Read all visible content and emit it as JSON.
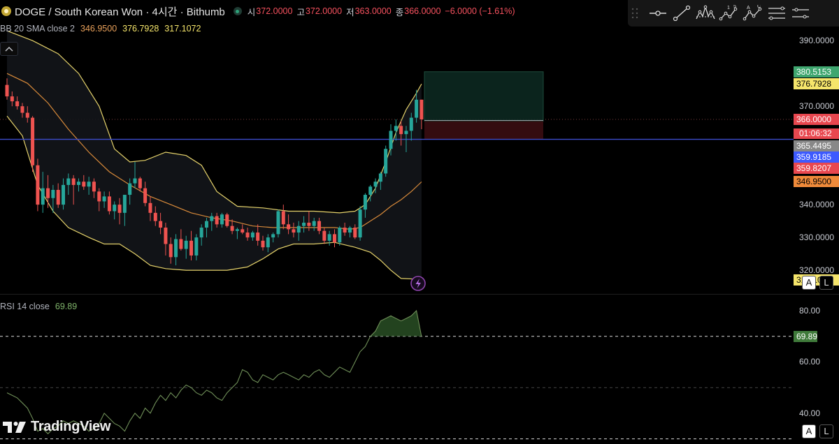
{
  "header": {
    "symbol_title": "DOGE / South Korean Won · 4시간 · Bithumb",
    "open_label": "시",
    "open_value": "372.0000",
    "high_label": "고",
    "high_value": "372.0000",
    "low_label": "저",
    "low_value": "363.0000",
    "close_label": "종",
    "close_value": "366.0000",
    "change": "−6.0000 (−1.61%)"
  },
  "indicators": {
    "bb_title": "BB 20 SMA close 2",
    "bb_basis": "346.9500",
    "bb_upper": "376.7928",
    "bb_lower": "317.1072",
    "rsi_title": "RSI 14 close",
    "rsi_value": "69.89"
  },
  "price_axis": {
    "ticks": [
      {
        "value": 390,
        "label": "390.0000"
      },
      {
        "value": 370,
        "label": "370.0000"
      },
      {
        "value": 340,
        "label": "340.0000"
      },
      {
        "value": 330,
        "label": "330.0000"
      },
      {
        "value": 320,
        "label": "320.0000"
      }
    ],
    "labels": [
      {
        "value": 380.5153,
        "text": "380.5153",
        "bg": "#3fa66f",
        "fg": "#ffffff"
      },
      {
        "value": 376.7928,
        "text": "376.7928",
        "bg": "#f5e56b",
        "fg": "#000000"
      },
      {
        "value": 366.0,
        "text": "366.0000",
        "bg": "#e8474f",
        "fg": "#ffffff"
      },
      {
        "value": 365.4495,
        "text": "365.4495",
        "bg": "#888888",
        "fg": "#ffffff"
      },
      {
        "value": 359.9185,
        "text": "359.9185",
        "bg": "#3d5afe",
        "fg": "#ffffff"
      },
      {
        "value": 359.8207,
        "text": "359.8207",
        "bg": "#e8474f",
        "fg": "#ffffff"
      },
      {
        "value": 346.95,
        "text": "346.9500",
        "bg": "#ef8a3a",
        "fg": "#000000"
      },
      {
        "value": 317.1072,
        "text": "317.1072",
        "bg": "#f5e56b",
        "fg": "#000000"
      }
    ],
    "countdown": "01:06:32"
  },
  "rsi_axis": {
    "ticks": [
      {
        "value": 80,
        "label": "80.00"
      },
      {
        "value": 60,
        "label": "60.00"
      },
      {
        "value": 40,
        "label": "40.00"
      }
    ],
    "current_label": "69.89",
    "current_bg": "#3f7a3a"
  },
  "controls": {
    "auto_scale": "A",
    "log_scale": "L",
    "collapse_icon": "chevron-up-icon"
  },
  "watermark": "TradingView",
  "colors": {
    "up": "#26a69a",
    "down": "#ef5350",
    "bb_band": "#e6d36b",
    "bb_basis": "#d88a3a",
    "horizontal_line": "#3d4dcc",
    "rsi_line": "#6f8f58"
  },
  "chart_data": {
    "type": "candlestick",
    "timeframe": "4시간",
    "y_range": [
      313,
      396
    ],
    "candles": [
      {
        "o": 376.5,
        "h": 378.5,
        "l": 372.0,
        "c": 373.0
      },
      {
        "o": 373.0,
        "h": 374.5,
        "l": 370.0,
        "c": 371.5
      },
      {
        "o": 371.5,
        "h": 373.0,
        "l": 369.0,
        "c": 370.0
      },
      {
        "o": 370.0,
        "h": 371.0,
        "l": 366.5,
        "c": 368.0
      },
      {
        "o": 368.0,
        "h": 370.0,
        "l": 365.0,
        "c": 366.5
      },
      {
        "o": 366.5,
        "h": 367.0,
        "l": 350.0,
        "c": 352.0
      },
      {
        "o": 352.0,
        "h": 354.0,
        "l": 338.0,
        "c": 340.0
      },
      {
        "o": 340.0,
        "h": 350.0,
        "l": 337.5,
        "c": 345.0
      },
      {
        "o": 345.0,
        "h": 349.0,
        "l": 339.0,
        "c": 342.0
      },
      {
        "o": 342.0,
        "h": 346.0,
        "l": 337.5,
        "c": 344.5
      },
      {
        "o": 344.5,
        "h": 346.5,
        "l": 339.0,
        "c": 340.0
      },
      {
        "o": 340.0,
        "h": 348.0,
        "l": 338.5,
        "c": 346.0
      },
      {
        "o": 346.0,
        "h": 349.5,
        "l": 343.0,
        "c": 348.0
      },
      {
        "o": 348.0,
        "h": 349.0,
        "l": 340.0,
        "c": 346.0
      },
      {
        "o": 346.0,
        "h": 348.0,
        "l": 344.0,
        "c": 347.0
      },
      {
        "o": 347.0,
        "h": 349.0,
        "l": 344.5,
        "c": 345.5
      },
      {
        "o": 345.5,
        "h": 348.5,
        "l": 343.0,
        "c": 347.0
      },
      {
        "o": 347.0,
        "h": 348.0,
        "l": 342.0,
        "c": 344.0
      },
      {
        "o": 344.0,
        "h": 345.0,
        "l": 338.0,
        "c": 341.0
      },
      {
        "o": 341.0,
        "h": 344.0,
        "l": 339.0,
        "c": 342.5
      },
      {
        "o": 342.5,
        "h": 344.0,
        "l": 337.0,
        "c": 338.0
      },
      {
        "o": 338.0,
        "h": 341.0,
        "l": 335.5,
        "c": 340.0
      },
      {
        "o": 340.0,
        "h": 342.0,
        "l": 334.0,
        "c": 337.5
      },
      {
        "o": 337.5,
        "h": 343.0,
        "l": 333.5,
        "c": 343.0
      },
      {
        "o": 343.0,
        "h": 348.0,
        "l": 340.0,
        "c": 346.5
      },
      {
        "o": 346.5,
        "h": 353.0,
        "l": 345.0,
        "c": 348.0
      },
      {
        "o": 348.0,
        "h": 348.5,
        "l": 344.0,
        "c": 345.0
      },
      {
        "o": 345.0,
        "h": 347.0,
        "l": 339.5,
        "c": 340.5
      },
      {
        "o": 340.5,
        "h": 342.5,
        "l": 335.0,
        "c": 337.5
      },
      {
        "o": 337.5,
        "h": 339.5,
        "l": 333.5,
        "c": 335.0
      },
      {
        "o": 335.0,
        "h": 337.5,
        "l": 331.0,
        "c": 333.0
      },
      {
        "o": 333.0,
        "h": 334.5,
        "l": 324.5,
        "c": 328.0
      },
      {
        "o": 328.0,
        "h": 330.0,
        "l": 322.0,
        "c": 324.0
      },
      {
        "o": 324.0,
        "h": 331.0,
        "l": 321.5,
        "c": 329.5
      },
      {
        "o": 329.5,
        "h": 332.5,
        "l": 326.0,
        "c": 326.5
      },
      {
        "o": 326.5,
        "h": 330.5,
        "l": 323.5,
        "c": 329.0
      },
      {
        "o": 329.0,
        "h": 332.0,
        "l": 323.0,
        "c": 324.5
      },
      {
        "o": 324.5,
        "h": 331.0,
        "l": 323.0,
        "c": 330.0
      },
      {
        "o": 330.0,
        "h": 334.0,
        "l": 327.5,
        "c": 333.0
      },
      {
        "o": 333.0,
        "h": 336.0,
        "l": 330.0,
        "c": 335.0
      },
      {
        "o": 335.0,
        "h": 337.5,
        "l": 332.0,
        "c": 336.5
      },
      {
        "o": 336.5,
        "h": 337.5,
        "l": 333.0,
        "c": 334.0
      },
      {
        "o": 334.0,
        "h": 337.5,
        "l": 333.0,
        "c": 337.0
      },
      {
        "o": 337.0,
        "h": 337.5,
        "l": 333.0,
        "c": 333.5
      },
      {
        "o": 333.5,
        "h": 335.5,
        "l": 331.0,
        "c": 332.0
      },
      {
        "o": 332.0,
        "h": 333.0,
        "l": 329.5,
        "c": 332.5
      },
      {
        "o": 332.5,
        "h": 334.0,
        "l": 331.0,
        "c": 331.5
      },
      {
        "o": 331.5,
        "h": 333.0,
        "l": 329.0,
        "c": 330.0
      },
      {
        "o": 330.0,
        "h": 332.0,
        "l": 329.0,
        "c": 331.5
      },
      {
        "o": 331.5,
        "h": 334.0,
        "l": 327.5,
        "c": 329.0
      },
      {
        "o": 329.0,
        "h": 330.5,
        "l": 326.0,
        "c": 327.0
      },
      {
        "o": 327.0,
        "h": 331.0,
        "l": 325.5,
        "c": 330.0
      },
      {
        "o": 330.0,
        "h": 331.5,
        "l": 328.5,
        "c": 331.0
      },
      {
        "o": 331.0,
        "h": 338.5,
        "l": 330.0,
        "c": 338.0
      },
      {
        "o": 338.0,
        "h": 340.0,
        "l": 332.5,
        "c": 334.0
      },
      {
        "o": 334.0,
        "h": 337.0,
        "l": 331.0,
        "c": 332.5
      },
      {
        "o": 332.5,
        "h": 334.5,
        "l": 330.0,
        "c": 331.5
      },
      {
        "o": 331.5,
        "h": 335.0,
        "l": 329.0,
        "c": 333.5
      },
      {
        "o": 333.5,
        "h": 336.5,
        "l": 331.5,
        "c": 334.5
      },
      {
        "o": 334.5,
        "h": 338.0,
        "l": 332.0,
        "c": 333.5
      },
      {
        "o": 333.5,
        "h": 336.0,
        "l": 332.0,
        "c": 335.0
      },
      {
        "o": 335.0,
        "h": 336.0,
        "l": 331.0,
        "c": 332.0
      },
      {
        "o": 332.0,
        "h": 333.0,
        "l": 328.0,
        "c": 329.0
      },
      {
        "o": 329.0,
        "h": 332.0,
        "l": 327.5,
        "c": 331.0
      },
      {
        "o": 331.0,
        "h": 332.5,
        "l": 327.0,
        "c": 328.5
      },
      {
        "o": 328.5,
        "h": 333.5,
        "l": 327.5,
        "c": 333.0
      },
      {
        "o": 333.0,
        "h": 334.5,
        "l": 330.5,
        "c": 331.5
      },
      {
        "o": 331.5,
        "h": 333.5,
        "l": 330.0,
        "c": 333.0
      },
      {
        "o": 333.0,
        "h": 334.0,
        "l": 329.5,
        "c": 330.0
      },
      {
        "o": 330.0,
        "h": 339.5,
        "l": 329.0,
        "c": 338.5
      },
      {
        "o": 338.5,
        "h": 343.5,
        "l": 336.0,
        "c": 343.0
      },
      {
        "o": 343.0,
        "h": 346.0,
        "l": 341.0,
        "c": 345.5
      },
      {
        "o": 345.5,
        "h": 348.0,
        "l": 343.5,
        "c": 347.0
      },
      {
        "o": 347.0,
        "h": 350.0,
        "l": 344.5,
        "c": 349.5
      },
      {
        "o": 349.5,
        "h": 358.0,
        "l": 348.5,
        "c": 357.0
      },
      {
        "o": 357.0,
        "h": 364.5,
        "l": 355.0,
        "c": 362.5
      },
      {
        "o": 362.5,
        "h": 366.0,
        "l": 359.5,
        "c": 364.0
      },
      {
        "o": 364.0,
        "h": 365.5,
        "l": 358.0,
        "c": 361.5
      },
      {
        "o": 361.5,
        "h": 364.0,
        "l": 356.0,
        "c": 362.5
      },
      {
        "o": 362.5,
        "h": 368.0,
        "l": 359.5,
        "c": 366.5
      },
      {
        "o": 366.5,
        "h": 375.0,
        "l": 365.0,
        "c": 372.0
      },
      {
        "o": 372.0,
        "h": 372.0,
        "l": 363.0,
        "c": 366.0
      }
    ],
    "bb_upper": [
      {
        "i": 0,
        "v": 393.0
      },
      {
        "i": 5,
        "v": 390.0
      },
      {
        "i": 10,
        "v": 386.0
      },
      {
        "i": 14,
        "v": 380.0
      },
      {
        "i": 18,
        "v": 370.0
      },
      {
        "i": 21,
        "v": 357.0
      },
      {
        "i": 24,
        "v": 353.0
      },
      {
        "i": 27,
        "v": 353.5
      },
      {
        "i": 31,
        "v": 356.0
      },
      {
        "i": 35,
        "v": 355.0
      },
      {
        "i": 38,
        "v": 352.0
      },
      {
        "i": 41,
        "v": 344.0
      },
      {
        "i": 45,
        "v": 339.5
      },
      {
        "i": 50,
        "v": 339.0
      },
      {
        "i": 55,
        "v": 338.0
      },
      {
        "i": 60,
        "v": 338.0
      },
      {
        "i": 65,
        "v": 337.5
      },
      {
        "i": 68,
        "v": 338.0
      },
      {
        "i": 70,
        "v": 340.0
      },
      {
        "i": 72,
        "v": 345.0
      },
      {
        "i": 74,
        "v": 353.0
      },
      {
        "i": 76,
        "v": 362.0
      },
      {
        "i": 78,
        "v": 369.0
      },
      {
        "i": 80,
        "v": 374.0
      },
      {
        "i": 81,
        "v": 376.79
      }
    ],
    "bb_basis": [
      {
        "i": 0,
        "v": 380.0
      },
      {
        "i": 4,
        "v": 377.0
      },
      {
        "i": 8,
        "v": 371.0
      },
      {
        "i": 12,
        "v": 363.0
      },
      {
        "i": 16,
        "v": 356.0
      },
      {
        "i": 20,
        "v": 350.0
      },
      {
        "i": 24,
        "v": 346.0
      },
      {
        "i": 28,
        "v": 342.5
      },
      {
        "i": 32,
        "v": 340.0
      },
      {
        "i": 36,
        "v": 337.5
      },
      {
        "i": 40,
        "v": 336.0
      },
      {
        "i": 44,
        "v": 335.0
      },
      {
        "i": 48,
        "v": 333.5
      },
      {
        "i": 52,
        "v": 333.0
      },
      {
        "i": 56,
        "v": 333.0
      },
      {
        "i": 60,
        "v": 333.0
      },
      {
        "i": 64,
        "v": 333.0
      },
      {
        "i": 67,
        "v": 332.5
      },
      {
        "i": 69,
        "v": 333.0
      },
      {
        "i": 71,
        "v": 335.0
      },
      {
        "i": 73,
        "v": 337.0
      },
      {
        "i": 75,
        "v": 339.5
      },
      {
        "i": 77,
        "v": 341.5
      },
      {
        "i": 79,
        "v": 344.0
      },
      {
        "i": 81,
        "v": 346.95
      }
    ],
    "bb_lower": [
      {
        "i": 0,
        "v": 367.0
      },
      {
        "i": 3,
        "v": 361.0
      },
      {
        "i": 6,
        "v": 346.0
      },
      {
        "i": 9,
        "v": 338.0
      },
      {
        "i": 12,
        "v": 333.0
      },
      {
        "i": 16,
        "v": 330.0
      },
      {
        "i": 19,
        "v": 328.0
      },
      {
        "i": 22,
        "v": 328.0
      },
      {
        "i": 25,
        "v": 325.0
      },
      {
        "i": 28,
        "v": 321.5
      },
      {
        "i": 31,
        "v": 320.5
      },
      {
        "i": 35,
        "v": 320.0
      },
      {
        "i": 39,
        "v": 320.0
      },
      {
        "i": 43,
        "v": 320.0
      },
      {
        "i": 47,
        "v": 321.0
      },
      {
        "i": 50,
        "v": 323.5
      },
      {
        "i": 53,
        "v": 326.5
      },
      {
        "i": 56,
        "v": 328.0
      },
      {
        "i": 60,
        "v": 328.0
      },
      {
        "i": 64,
        "v": 328.5
      },
      {
        "i": 68,
        "v": 327.0
      },
      {
        "i": 71,
        "v": 325.5
      },
      {
        "i": 73,
        "v": 323.0
      },
      {
        "i": 75,
        "v": 320.0
      },
      {
        "i": 77,
        "v": 317.5
      },
      {
        "i": 80,
        "v": 317.3
      },
      {
        "i": 81,
        "v": 317.11
      }
    ],
    "horizontal_line": 359.9185,
    "last_close_line": 366.0,
    "position": {
      "entry": 365.4495,
      "target": 380.5153,
      "stop": 359.8207
    },
    "rsi": {
      "y_range": [
        28,
        86
      ],
      "levels": [
        70,
        50,
        30
      ],
      "values": [
        48,
        47,
        46,
        44,
        42,
        38,
        33,
        34,
        32,
        34,
        35,
        37,
        36,
        37,
        36,
        35,
        33,
        34,
        36,
        40,
        38,
        36,
        35,
        33,
        37,
        40,
        38,
        42,
        40,
        44,
        47,
        45,
        48,
        46,
        49,
        51,
        50,
        48,
        47,
        49,
        48,
        46,
        45,
        48,
        50,
        52,
        57,
        56,
        53,
        52,
        55,
        54,
        53,
        55,
        56,
        55,
        54,
        53,
        55,
        54,
        56,
        57,
        55,
        54,
        56,
        58,
        57,
        56,
        60,
        64,
        66,
        70,
        72,
        76,
        77,
        78,
        77,
        76,
        77,
        78,
        80,
        69.89
      ]
    }
  }
}
